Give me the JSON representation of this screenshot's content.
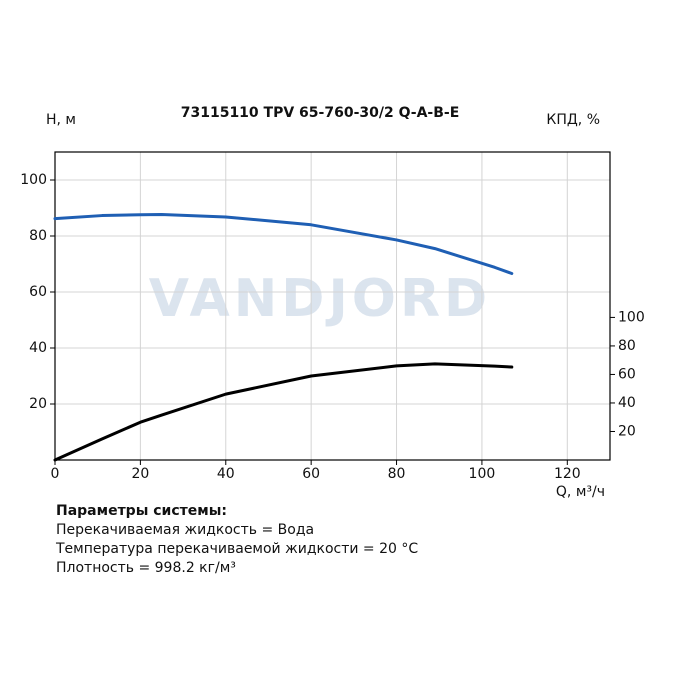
{
  "chart_data": {
    "type": "line",
    "title": "73115110 TPV 65-760-30/2 Q-A-B-E",
    "y_label": "H, м",
    "y2_label": "КПД, %",
    "x_label": "Q, м³/ч",
    "watermark": "VANDJORD",
    "x": [
      0,
      11,
      20,
      25,
      40,
      60,
      80,
      89,
      103,
      107
    ],
    "series": [
      {
        "color": "#1f5fb4",
        "values": [
          86.2,
          87.3,
          87.6,
          87.7,
          86.8,
          84,
          78.6,
          75.5,
          68.8,
          66.6
        ]
      },
      {
        "color": "#000000",
        "axis": "y2",
        "values": [
          0,
          14.7,
          26.5,
          31.5,
          46.2,
          58.9,
          66,
          67.4,
          65.8,
          65.2
        ]
      }
    ],
    "xlim": [
      0,
      130
    ],
    "xticks": [
      0,
      20,
      40,
      60,
      80,
      100,
      120
    ],
    "ylim": [
      0,
      110
    ],
    "yticks": [
      20,
      40,
      60,
      80,
      100
    ],
    "y2lim": [
      0,
      216
    ],
    "y2ticks": [
      20,
      40,
      60,
      80,
      100
    ],
    "grid": true
  },
  "system": {
    "heading": "Параметры системы:",
    "lines": [
      "Перекачиваемая жидкость = Вода",
      "Температура перекачиваемой жидкости = 20 °C",
      "Плотность = 998.2 кг/м³"
    ]
  }
}
